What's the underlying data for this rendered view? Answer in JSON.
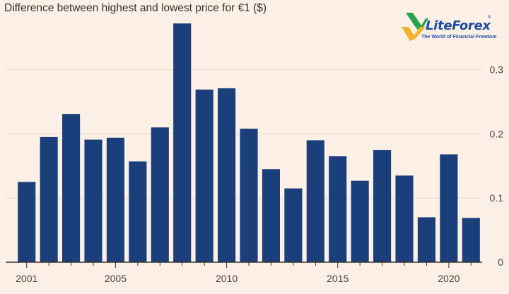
{
  "chart_data": {
    "type": "bar",
    "title": "Difference between highest and lowest price for €1 ($)",
    "xlabel": "",
    "ylabel": "",
    "categories": [
      "2001",
      "2002",
      "2003",
      "2004",
      "2005",
      "2006",
      "2007",
      "2008",
      "2009",
      "2010",
      "2011",
      "2012",
      "2013",
      "2014",
      "2015",
      "2016",
      "2017",
      "2018",
      "2019",
      "2020",
      "2021"
    ],
    "values": [
      0.125,
      0.195,
      0.231,
      0.191,
      0.194,
      0.157,
      0.21,
      0.372,
      0.269,
      0.271,
      0.208,
      0.145,
      0.115,
      0.19,
      0.165,
      0.127,
      0.175,
      0.135,
      0.07,
      0.168,
      0.069
    ],
    "ylim": [
      0,
      0.37
    ],
    "yticks": [
      0,
      0.1,
      0.2,
      0.3
    ],
    "ytick_labels": [
      "0",
      "0.1",
      "0.2",
      "0.3"
    ],
    "xtick_labels": [
      "2001",
      "2005",
      "2010",
      "2015",
      "2020"
    ],
    "grid": true,
    "bar_color": "#1b3f7a",
    "grid_color": "#e8d9cd",
    "axis_color": "#3a3633"
  },
  "logo": {
    "brand": "LiteForex",
    "tagline": "The World of Financial Freedom",
    "reg": "®"
  }
}
